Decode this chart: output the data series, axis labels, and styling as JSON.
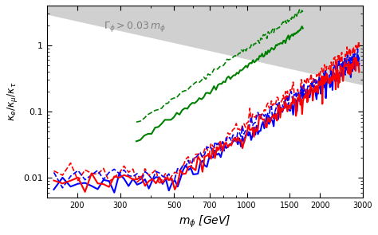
{
  "title": "",
  "xlabel": "$m_{\\phi}$ [GeV]",
  "ylabel": "$\\kappa_e/\\kappa_\\mu/\\kappa_\\tau$",
  "xlim": [
    150,
    3000
  ],
  "ylim_log": [
    -2.3,
    0.6
  ],
  "annotation": "$\\Gamma_\\phi > 0.03\\, m_\\phi$",
  "background_color": "#ffffff",
  "gray_fill_color": "#cccccc",
  "axis_label_fontsize": 11
}
